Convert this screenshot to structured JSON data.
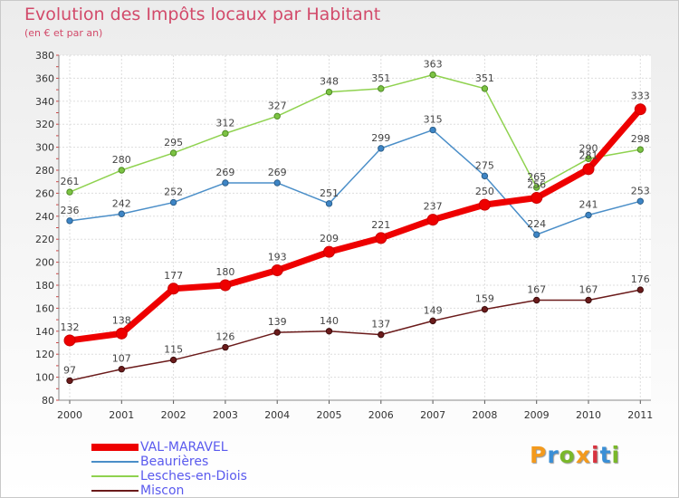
{
  "title": "Evolution des Impôts locaux par Habitant",
  "subtitle": "(en € et par an)",
  "logo": {
    "text": "Proxiti",
    "colors": [
      "#f39a1d",
      "#3a8fd6",
      "#7ab82a",
      "#f39a1d",
      "#d8333f",
      "#3a8fd6",
      "#7ab82a"
    ]
  },
  "chart_data": {
    "type": "line",
    "title": "Evolution des Impôts locaux par Habitant",
    "subtitle": "(en € et par an)",
    "x": [
      "2000",
      "2001",
      "2002",
      "2003",
      "2004",
      "2005",
      "2006",
      "2007",
      "2008",
      "2009",
      "2010",
      "2011"
    ],
    "ylim": [
      80,
      380
    ],
    "yticks": [
      80,
      100,
      120,
      140,
      160,
      180,
      200,
      220,
      240,
      260,
      280,
      300,
      320,
      340,
      360,
      380
    ],
    "grid": true,
    "legend_position": "bottom-left",
    "series": [
      {
        "name": "VAL-MARAVEL",
        "color": "#ee0000",
        "values": [
          132,
          138,
          177,
          180,
          193,
          209,
          221,
          237,
          250,
          256,
          281,
          333
        ],
        "labels": [
          "132",
          "138",
          "177",
          "180",
          "193",
          "209",
          "221",
          "237",
          "250",
          "256",
          "281",
          "333"
        ]
      },
      {
        "name": "Beaurières",
        "color": "#4a8ec8",
        "values": [
          236,
          242,
          252,
          269,
          269,
          251,
          299,
          315,
          275,
          224,
          241,
          253
        ],
        "labels": [
          "236",
          "242",
          "252",
          "269",
          "269",
          "251",
          "299",
          "315",
          "275",
          "224",
          "241",
          "253"
        ]
      },
      {
        "name": "Lesches-en-Diois",
        "color": "#8fd24f",
        "values": [
          261,
          280,
          295,
          312,
          327,
          348,
          351,
          363,
          351,
          265,
          290,
          298
        ],
        "labels": [
          "261",
          "280",
          "295",
          "312",
          "327",
          "348",
          "351",
          "363",
          "351",
          "265",
          "290",
          "298"
        ]
      },
      {
        "name": "Miscon",
        "color": "#6b1b1b",
        "values": [
          97,
          107,
          115,
          126,
          139,
          140,
          137,
          149,
          159,
          167,
          167,
          176
        ],
        "labels": [
          "97",
          "107",
          "115",
          "126",
          "139",
          "140",
          "137",
          "149",
          "159",
          "167",
          "167",
          "176"
        ]
      }
    ]
  }
}
